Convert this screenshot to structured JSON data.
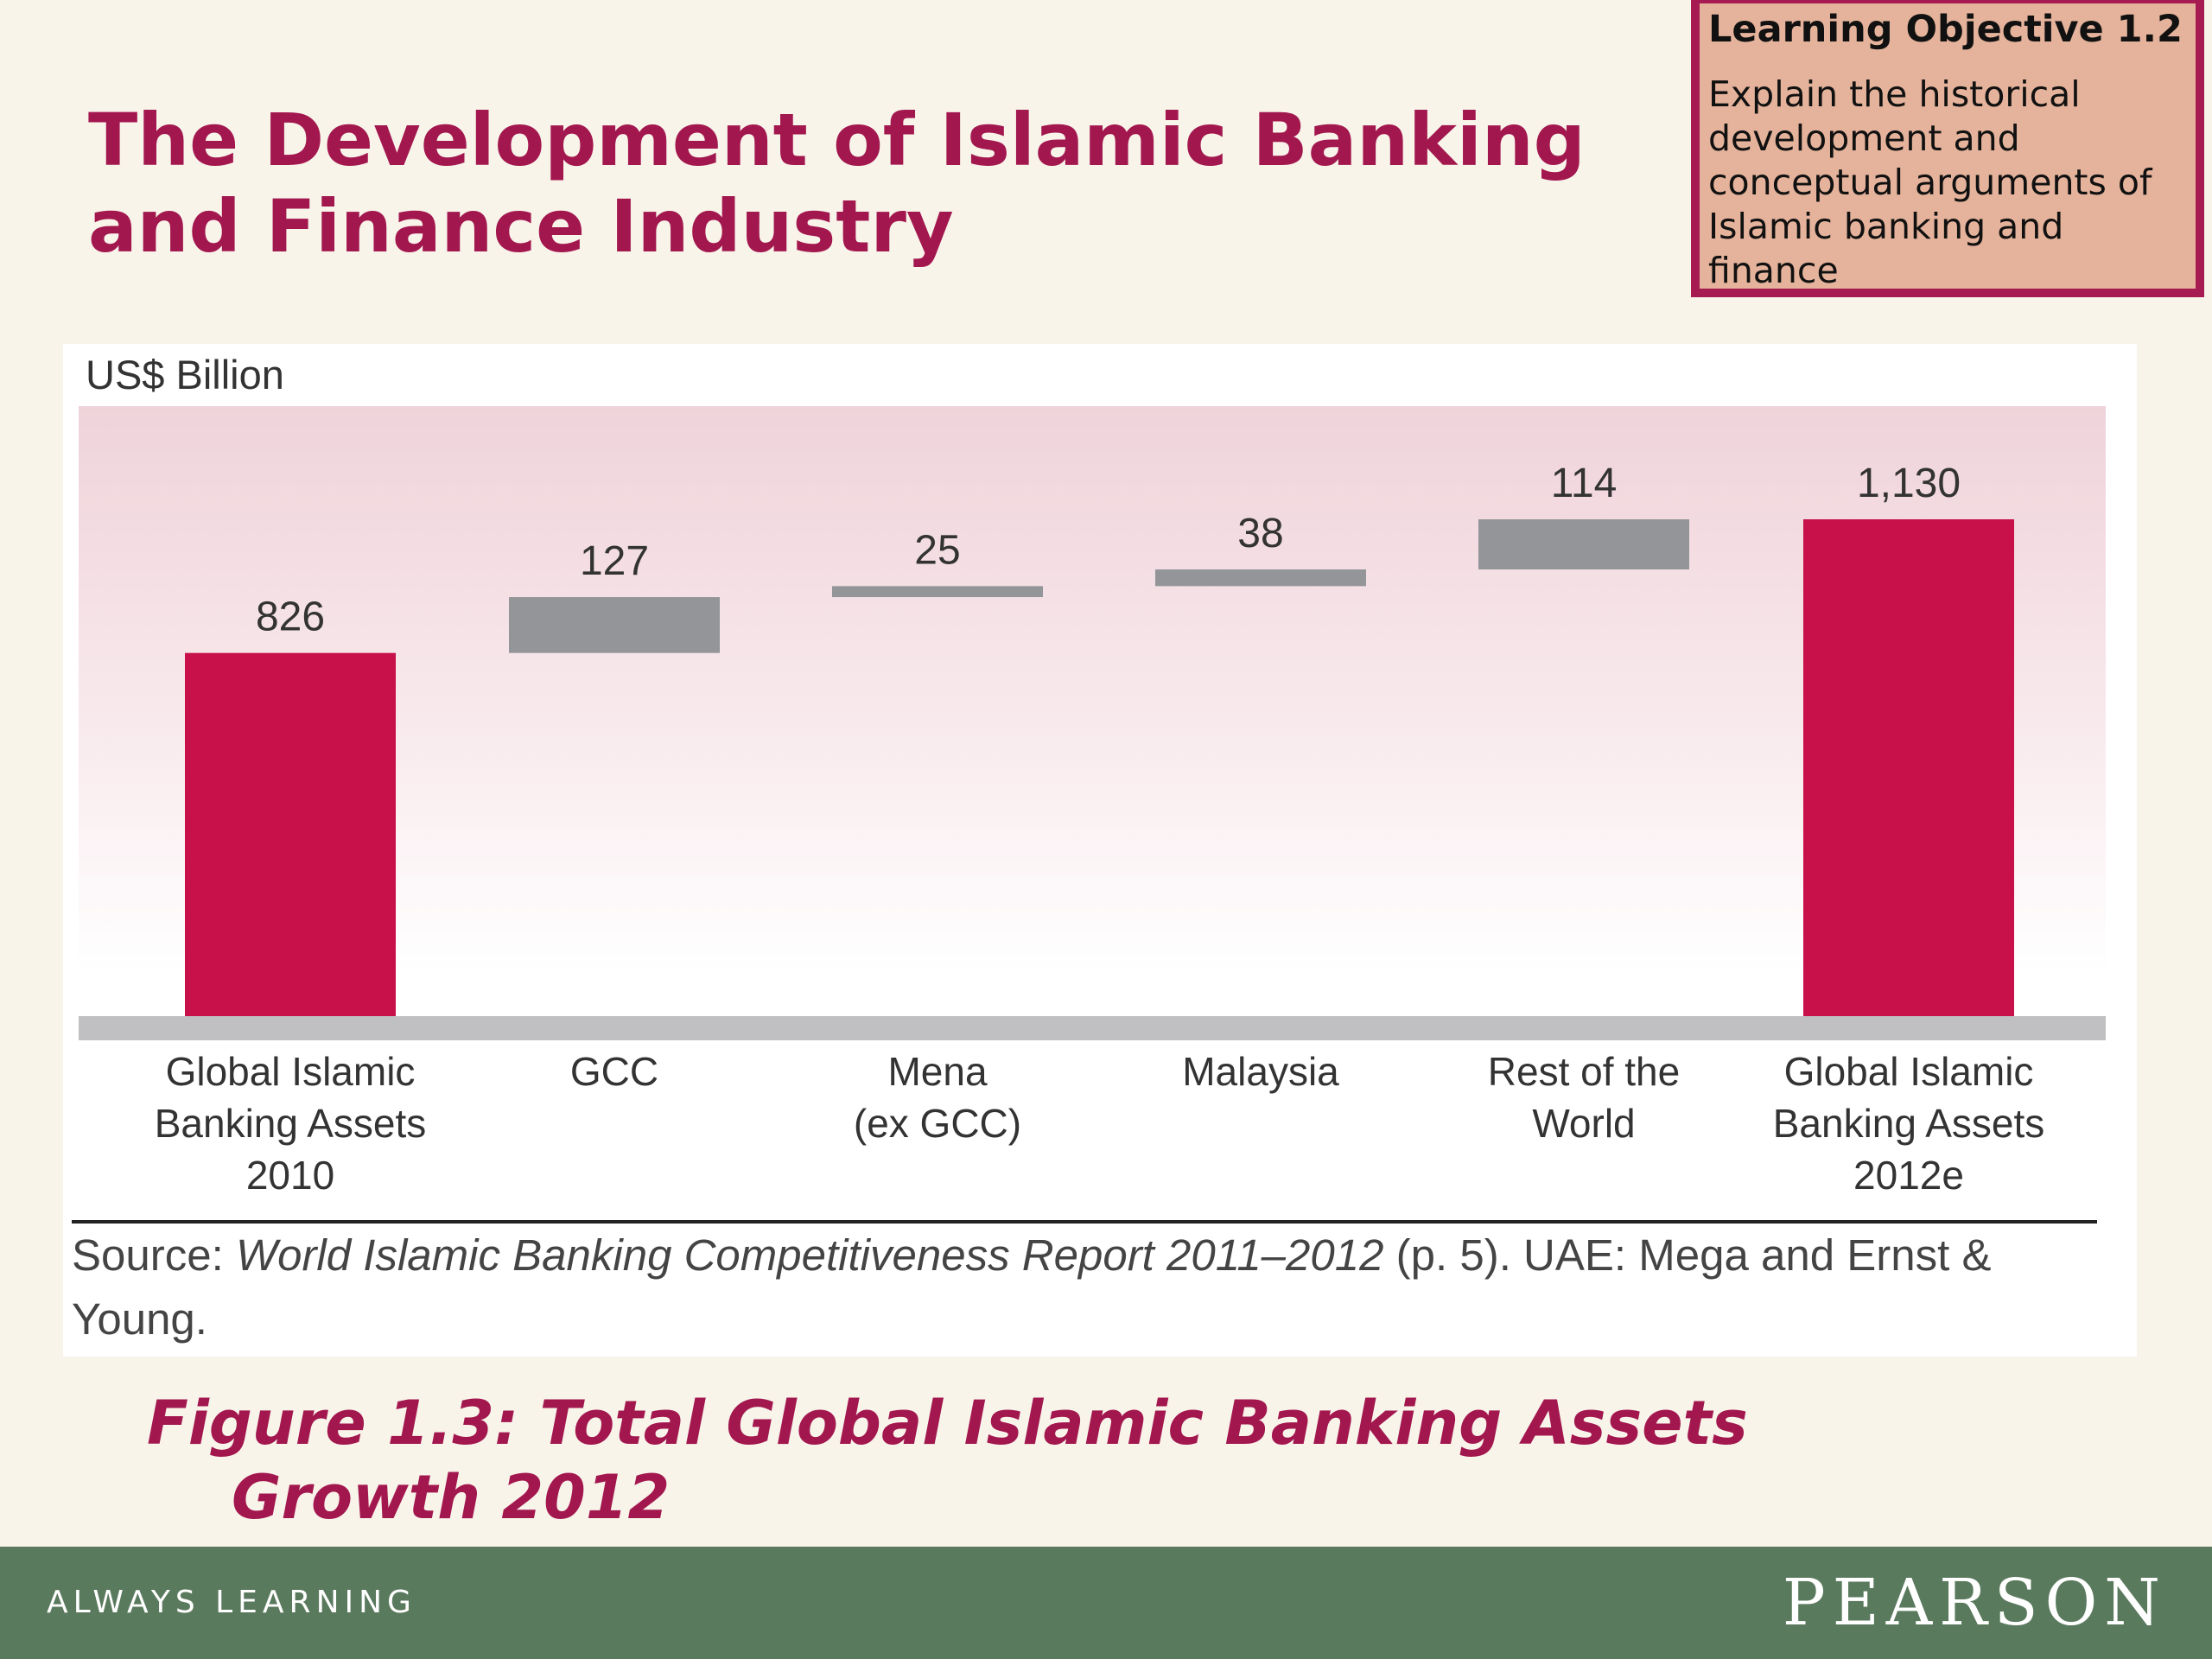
{
  "slide": {
    "title_line1": "The Development of Islamic Banking",
    "title_line2": "and Finance Industry"
  },
  "learning_objective": {
    "heading": "Learning Objective 1.2",
    "text": "Explain the historical development and conceptual arguments of Islamic banking and finance"
  },
  "chart_data": {
    "type": "bar",
    "subtype": "waterfall",
    "ylabel": "US$ Billion",
    "categories": [
      [
        "Global Islamic",
        "Banking Assets",
        "2010"
      ],
      [
        "GCC"
      ],
      [
        "Mena",
        "(ex GCC)"
      ],
      [
        "Malaysia"
      ],
      [
        "Rest of the",
        "World"
      ],
      [
        "Global Islamic",
        "Banking Assets",
        "2012e"
      ]
    ],
    "values": [
      826,
      127,
      25,
      38,
      114,
      1130
    ],
    "value_labels": [
      "826",
      "127",
      "25",
      "38",
      "114",
      "1,130"
    ],
    "bar_kinds": [
      "total",
      "increment",
      "increment",
      "increment",
      "increment",
      "total"
    ],
    "ylim": [
      0,
      1200
    ],
    "grid": false,
    "colors": {
      "total": "#c8104a",
      "increment": "#939598",
      "axis": "#c0c0c3",
      "label": "#333333"
    }
  },
  "source": {
    "prefix": "Source: ",
    "italic": "World Islamic Banking Competitiveness Report 2011–2012",
    "suffix": " (p. 5). UAE: Mega and Ernst & Young."
  },
  "figure_caption": {
    "line1": "Figure 1.3: Total Global Islamic Banking Assets",
    "line2": "Growth 2012"
  },
  "footer": {
    "tagline": "ALWAYS LEARNING",
    "brand": "PEARSON"
  }
}
